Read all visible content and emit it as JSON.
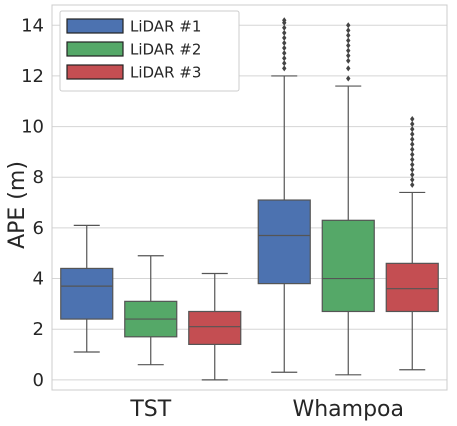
{
  "chart_data": {
    "type": "box",
    "ylabel": "APE (m)",
    "xlabel": "",
    "ylim": [
      -0.4,
      14.8
    ],
    "yticks": [
      0,
      2,
      4,
      6,
      8,
      10,
      12,
      14
    ],
    "grid": true,
    "legend_position": "top-left",
    "categories": [
      "TST",
      "Whampoa"
    ],
    "series": [
      {
        "name": "LiDAR #1",
        "color": "#4c72b0",
        "boxes": [
          {
            "whisker_low": 1.1,
            "q1": 2.4,
            "median": 3.7,
            "q3": 4.4,
            "whisker_high": 6.1,
            "outliers": []
          },
          {
            "whisker_low": 0.3,
            "q1": 3.8,
            "median": 5.7,
            "q3": 7.1,
            "whisker_high": 12.0,
            "outliers": [
              12.3,
              12.5,
              12.7,
              12.9,
              13.1,
              13.3,
              13.5,
              13.7,
              13.9,
              14.1,
              14.2
            ]
          }
        ]
      },
      {
        "name": "LiDAR #2",
        "color": "#55a868",
        "boxes": [
          {
            "whisker_low": 0.6,
            "q1": 1.7,
            "median": 2.4,
            "q3": 3.1,
            "whisker_high": 4.9,
            "outliers": []
          },
          {
            "whisker_low": 0.2,
            "q1": 2.7,
            "median": 4.0,
            "q3": 6.3,
            "whisker_high": 11.6,
            "outliers": [
              11.9,
              12.3,
              12.6,
              12.8,
              13.0,
              13.2,
              13.4,
              13.6,
              13.8,
              14.0
            ]
          }
        ]
      },
      {
        "name": "LiDAR #3",
        "color": "#c44e52",
        "boxes": [
          {
            "whisker_low": 0.0,
            "q1": 1.4,
            "median": 2.1,
            "q3": 2.7,
            "whisker_high": 4.2,
            "outliers": []
          },
          {
            "whisker_low": 0.4,
            "q1": 2.7,
            "median": 3.6,
            "q3": 4.6,
            "whisker_high": 7.4,
            "outliers": [
              7.7,
              7.9,
              8.1,
              8.3,
              8.5,
              8.7,
              8.9,
              9.1,
              9.3,
              9.5,
              9.7,
              9.9,
              10.1,
              10.3
            ]
          }
        ]
      }
    ]
  }
}
